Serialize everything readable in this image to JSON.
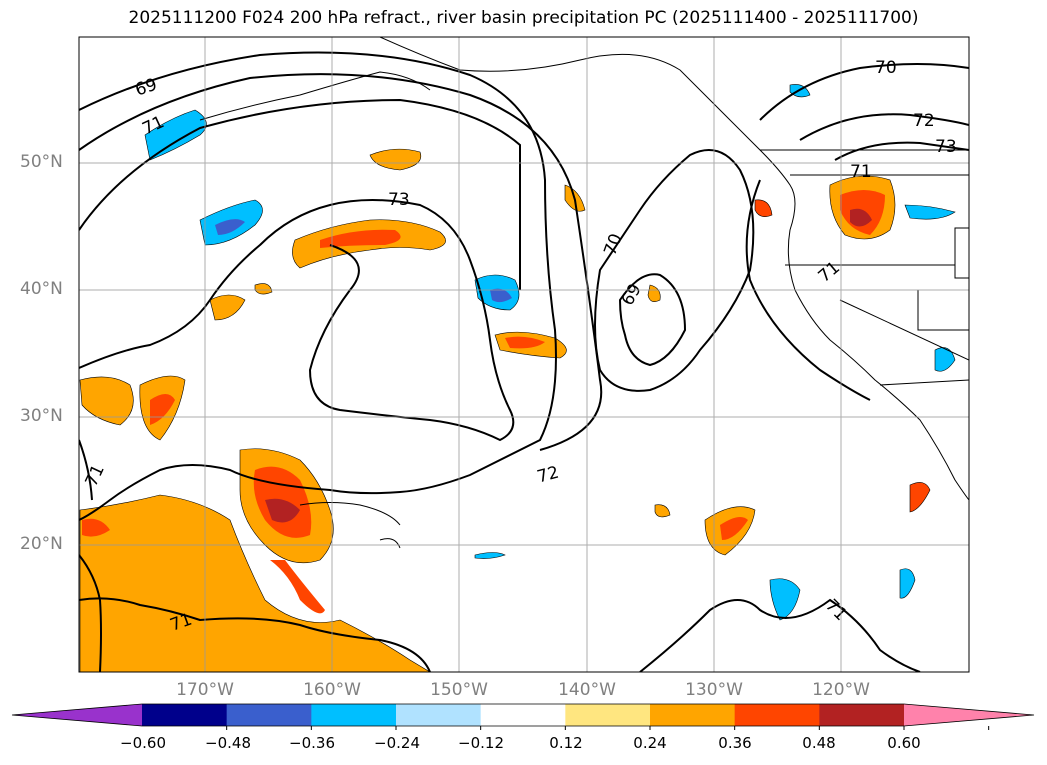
{
  "title": "2025111200 F024 200 hPa refract., river basin precipitation PC (2025111400 - 2025111700)",
  "map": {
    "lat_labels": [
      "50°N",
      "40°N",
      "30°N",
      "20°N"
    ],
    "lon_labels": [
      "170°W",
      "160°W",
      "150°W",
      "140°W",
      "130°W",
      "120°W"
    ],
    "contour_labels": [
      "69",
      "71",
      "73",
      "70",
      "69",
      "72",
      "71",
      "70",
      "72",
      "73",
      "71",
      "71",
      "71",
      "71"
    ]
  },
  "colorbar": {
    "ticks": [
      "−0.60",
      "−0.48",
      "−0.36",
      "−0.24",
      "−0.12",
      "0.12",
      "0.24",
      "0.36",
      "0.48",
      "0.60"
    ],
    "colors": [
      "#9932cc",
      "#00008b",
      "#3a5fcd",
      "#00bfff",
      "#b0e2ff",
      "#ffffff",
      "#ffe680",
      "#ffa500",
      "#ff4500",
      "#b22222",
      "#ff82ab"
    ]
  }
}
